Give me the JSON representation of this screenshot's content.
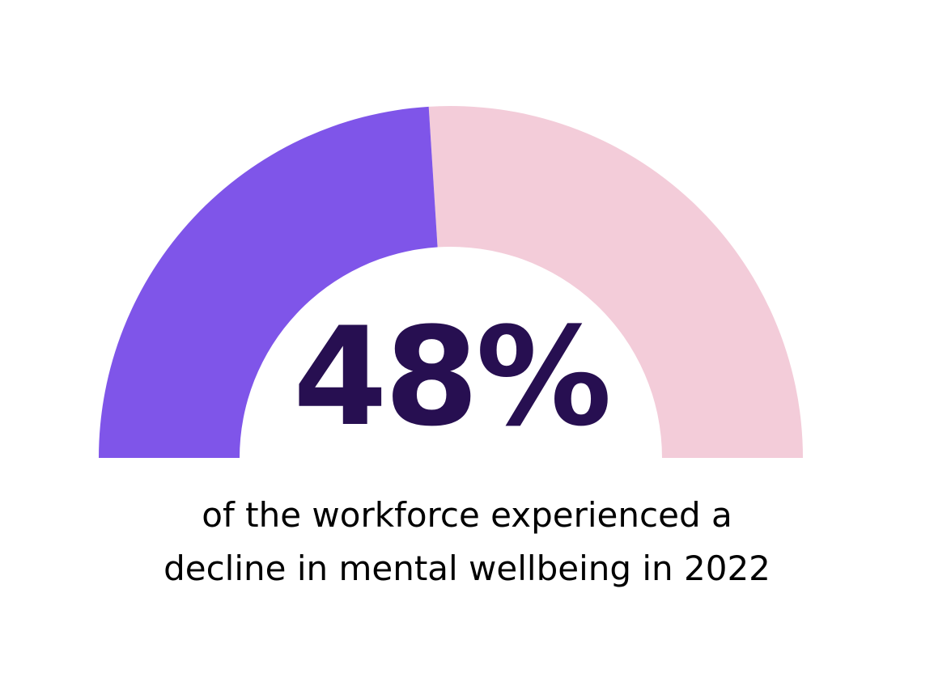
{
  "chart_data": {
    "type": "pie",
    "style": "half-donut-gauge",
    "value": 48,
    "max": 100,
    "unit": "%",
    "center_label": "48%",
    "caption": [
      "of the workforce experienced a",
      "decline in mental wellbeing in 2022"
    ],
    "colors": {
      "filled": "#7f55e9",
      "remaining": "#f3ccd9",
      "center_text": "#270f51",
      "caption_text": "#000000"
    }
  }
}
